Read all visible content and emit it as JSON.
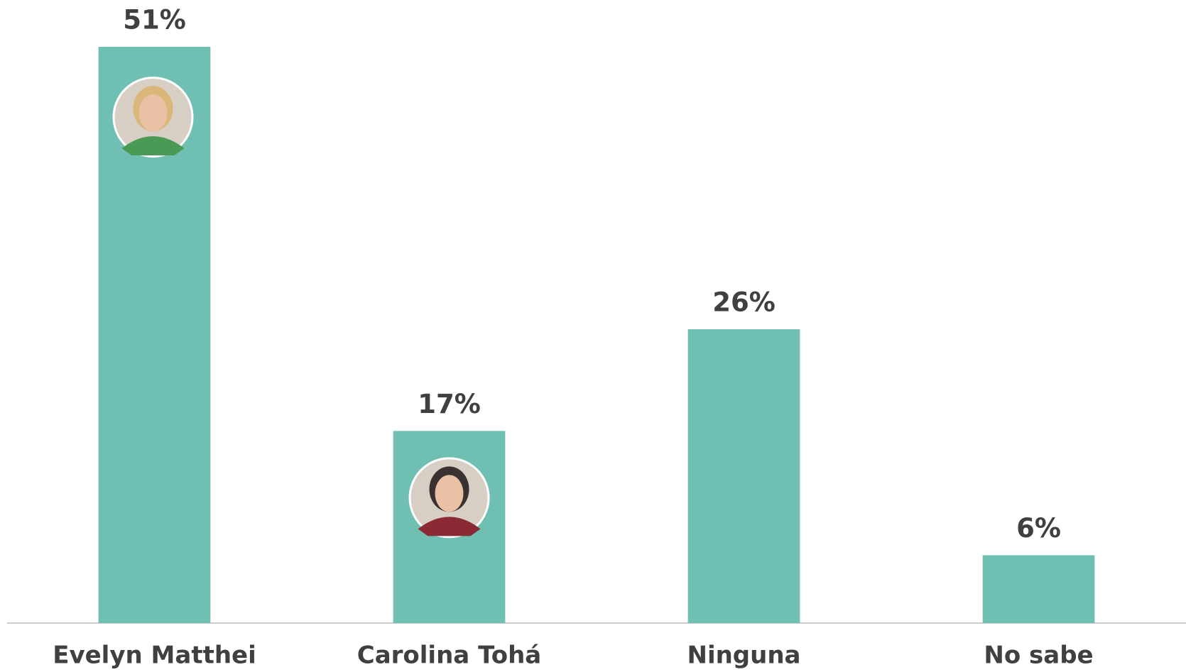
{
  "chart_data": {
    "type": "bar",
    "categories": [
      "Evelyn Matthei",
      "Carolina Tohá",
      "Ninguna",
      "No sabe"
    ],
    "values": [
      51,
      17,
      26,
      6
    ],
    "value_labels": [
      "51%",
      "17%",
      "26%",
      "6%"
    ],
    "color": "#6fc0b3"
  }
}
